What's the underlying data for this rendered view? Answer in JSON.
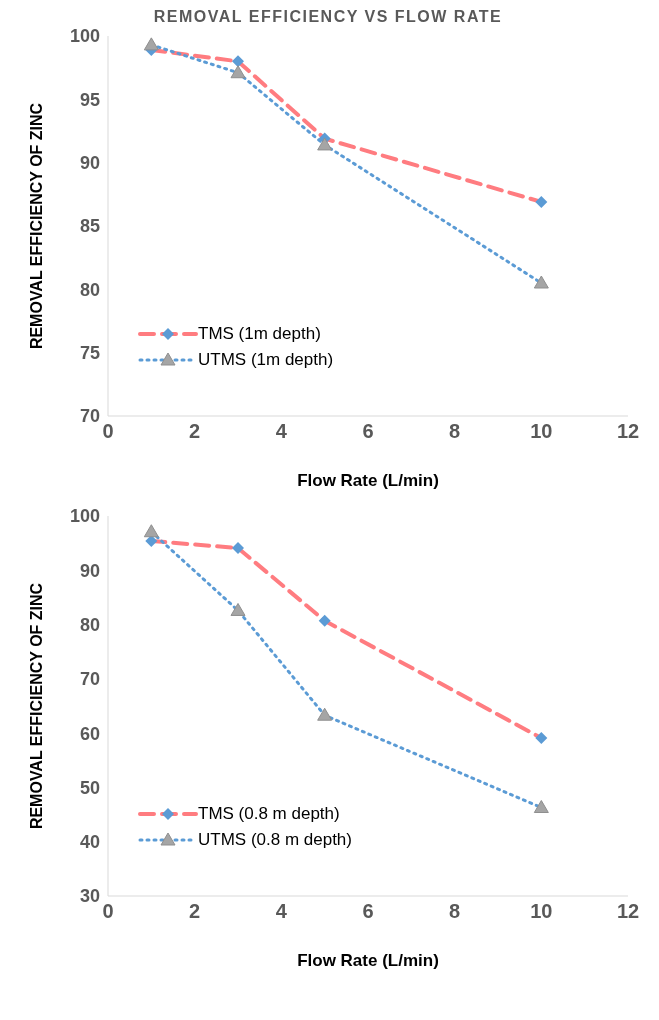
{
  "chart_data": [
    {
      "type": "line",
      "title": "REMOVAL EFFICIENCY VS FLOW RATE",
      "xlabel": "Flow Rate (L/min)",
      "ylabel": "REMOVAL EFFICIENCY OF ZINC",
      "x": [
        1,
        3,
        5,
        10
      ],
      "xlim": [
        0,
        12
      ],
      "xticks": [
        0,
        2,
        4,
        6,
        8,
        10,
        12
      ],
      "ylim": [
        70,
        100
      ],
      "yticks": [
        70,
        75,
        80,
        85,
        90,
        95,
        100
      ],
      "grid": false,
      "legend": "bottom left",
      "series": [
        {
          "name": "TMS (1m depth)",
          "color": "#ff7c80",
          "line_style": "dashed",
          "marker": "diamond",
          "values": [
            98.9,
            98.0,
            91.9,
            86.9
          ]
        },
        {
          "name": "UTMS (1m depth)",
          "color": "#5b9bd5",
          "line_style": "dotted",
          "marker": "triangle",
          "values": [
            99.3,
            97.1,
            91.4,
            80.5
          ]
        }
      ]
    },
    {
      "type": "line",
      "xlabel": "Flow Rate (L/min)",
      "ylabel": "REMOVAL EFFICIENCY OF ZINC",
      "x": [
        1,
        3,
        5,
        10
      ],
      "xlim": [
        0,
        12
      ],
      "xticks": [
        0,
        2,
        4,
        6,
        8,
        10,
        12
      ],
      "ylim": [
        30,
        100
      ],
      "yticks": [
        30,
        40,
        50,
        60,
        70,
        80,
        90,
        100
      ],
      "grid": false,
      "legend": "bottom left",
      "series": [
        {
          "name": "TMS (0.8 m depth)",
          "color": "#ff7c80",
          "line_style": "dashed",
          "marker": "diamond",
          "values": [
            95.4,
            94.1,
            80.7,
            59.1
          ]
        },
        {
          "name": "UTMS (0.8 m depth)",
          "color": "#5b9bd5",
          "line_style": "dotted",
          "marker": "triangle",
          "values": [
            97.1,
            82.6,
            63.3,
            46.3
          ]
        }
      ]
    }
  ]
}
